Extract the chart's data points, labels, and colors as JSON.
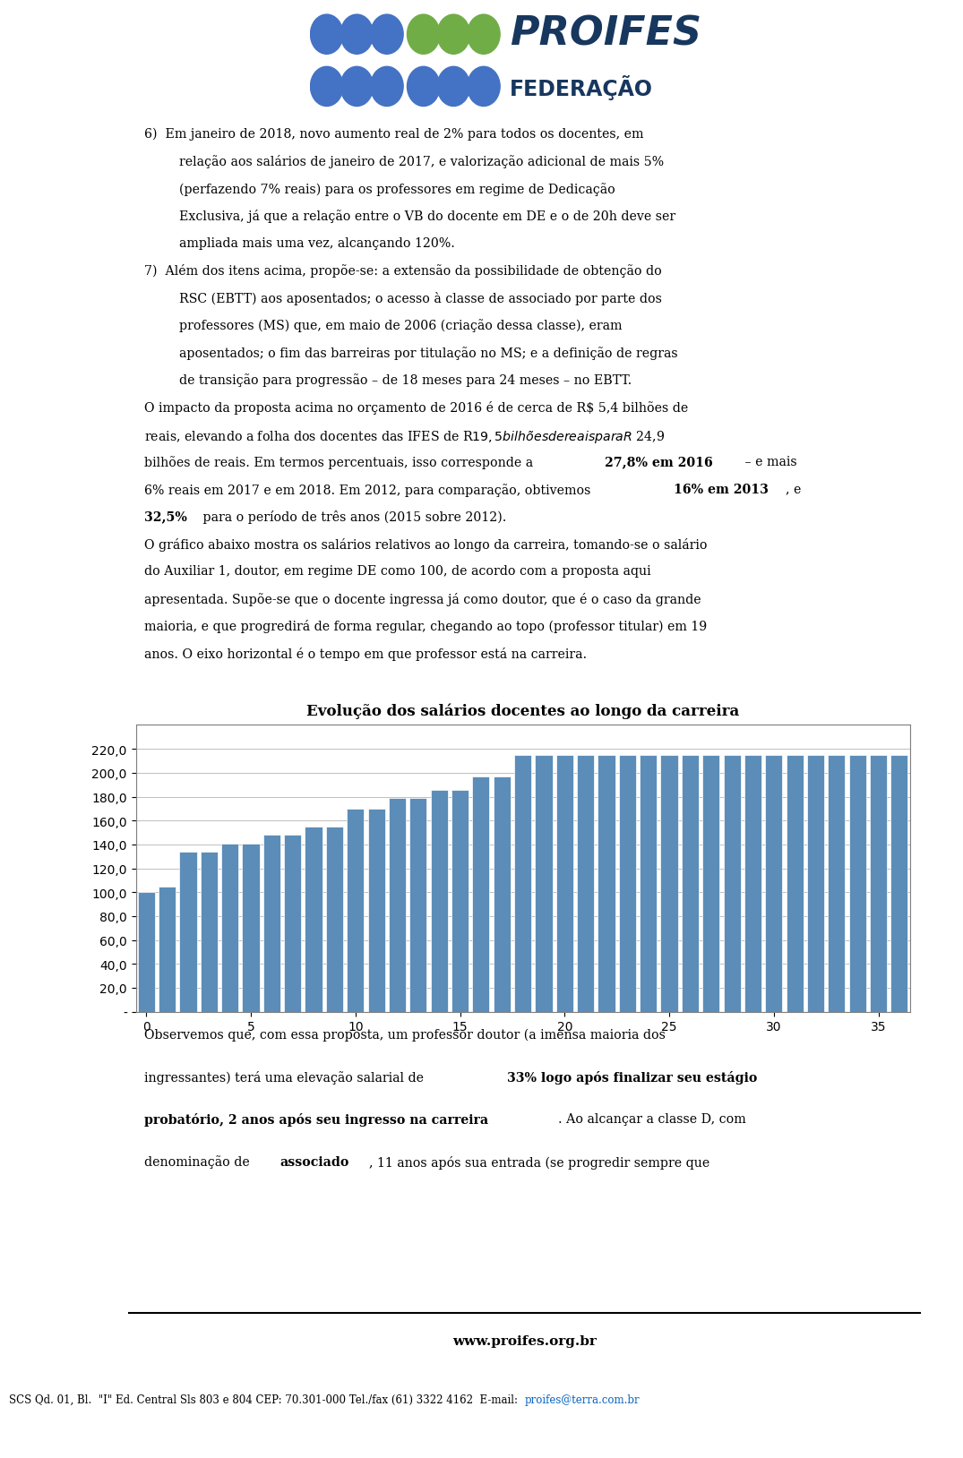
{
  "title": "Evolução dos salários docentes ao longo da carreira",
  "bar_color": "#5B8DB8",
  "bar_values": [
    100.0,
    105.0,
    134.0,
    134.0,
    141.0,
    141.0,
    148.0,
    148.0,
    155.0,
    155.0,
    170.0,
    170.0,
    179.0,
    179.0,
    186.0,
    186.0,
    197.0,
    197.0,
    215.0,
    215.0,
    215.0,
    215.0,
    215.0,
    215.0,
    215.0,
    215.0,
    215.0,
    215.0,
    215.0,
    215.0,
    215.0,
    215.0,
    215.0,
    215.0,
    215.0,
    215.0,
    215.0
  ],
  "x_values": [
    0,
    1,
    2,
    3,
    4,
    5,
    6,
    7,
    8,
    9,
    10,
    11,
    12,
    13,
    14,
    15,
    16,
    17,
    18,
    19,
    20,
    21,
    22,
    23,
    24,
    25,
    26,
    27,
    28,
    29,
    30,
    31,
    32,
    33,
    34,
    35,
    36
  ],
  "xlim": [
    -0.5,
    36.5
  ],
  "ylim": [
    0,
    240
  ],
  "yticks": [
    0,
    20.0,
    40.0,
    60.0,
    80.0,
    100.0,
    120.0,
    140.0,
    160.0,
    180.0,
    200.0,
    220.0
  ],
  "ytick_labels": [
    "-",
    "20,0",
    "40,0",
    "60,0",
    "80,0",
    "100,0",
    "120,0",
    "140,0",
    "160,0",
    "180,0",
    "200,0",
    "220,0"
  ],
  "xticks": [
    0,
    5,
    10,
    15,
    20,
    25,
    30,
    35
  ],
  "background_color": "#FFFFFF",
  "chart_bg": "#FFFFFF",
  "grid_color": "#BEBEBE",
  "logo_blue": "#4472C4",
  "logo_green": "#70AD47",
  "logo_darkblue": "#17375E",
  "footer_url": "www.proifes.org.br",
  "footer_address": "SCS Qd. 01, Bl.  \"I\" Ed. Central Sls 803 e 804 CEP: 70.301-000 Tel./fax (61) 3322 4162  E-mail:  proifes@terra.com.br",
  "p6_line1": "6)  Em janeiro de 2018, novo aumento real de 2% para todos os docentes, em",
  "p6_line2": "relação aos salários de janeiro de 2017, e valorização adicional de mais 5%",
  "p6_line3": "(perfazendo 7% reais) para os professores em regime de Dedicação",
  "p6_line4": "Exclusiva, já que a relação entre o VB do docente em DE e o de 20h deve ser",
  "p6_line5": "ampliada mais uma vez, alcançando 120%.",
  "p7_line1": "7)  Além dos itens acima, propõe-se: a extensão da possibilidade de obtenção do",
  "p7_line2": "RSC (EBTT) aos aposentados; o acesso à classe de associado por parte dos",
  "p7_line3": "professores (MS) que, em maio de 2006 (criação dessa classe), eram",
  "p7_line4": "aposentados; o fim das barreiras por titulação no MS; e a definição de regras",
  "p7_line5": "de transição para progressão – de 18 meses para 24 meses – no EBTT.",
  "imp_line1": "O impacto da proposta acima no orçamento de 2016 é de cerca de R$ 5,4 bilhões de",
  "imp_line2": "reais, elevando a folha dos docentes das IFES de R$ 19,5 bilhões de reais para R$ 24,9",
  "imp_line3": "bilhões de reais. Em termos percentuais, isso corresponde a ",
  "imp_line3b": "27,8% em 2016",
  "imp_line3c": " – e mais",
  "imp_line4": "6% reais em 2017 e em 2018. Em 2012, para comparação, obtivemos ",
  "imp_line4b": "16% em 2013",
  "imp_line4c": ", e",
  "imp_line5": "32,5%",
  "imp_line5b": " para o período de três anos (2015 sobre 2012).",
  "grf_line1": "O gráfico abaixo mostra os salários relativos ao longo da carreira, tomando-se o salário",
  "grf_line2": "do Auxiliar 1, doutor, em regime DE como 100, de acordo com a proposta aqui",
  "grf_line3": "apresentada. Supõe-se que o docente ingressa já como doutor, que é o caso da grande",
  "grf_line4": "maioria, e que progredirá de forma regular, chegando ao topo (professor titular) em 19",
  "grf_line5": "anos. O eixo horizontal é o tempo em que professor está na carreira.",
  "obs_line1": "Observemos que, com essa proposta, um professor doutor (a imensa maioria dos",
  "obs_line2": "ingressantes) terá uma elevação salarial de ",
  "obs_line2b": "33% logo após finalizar seu estágio",
  "obs_line3": "prbatório, 2 anos após seu ingresso na carreira",
  "obs_line3b": ". Ao alcançar a classe D, com",
  "obs_line4": "denominação de ",
  "obs_line4b": "associado",
  "obs_line4c": ", 11 anos após sua entrada (se progredir sempre que"
}
